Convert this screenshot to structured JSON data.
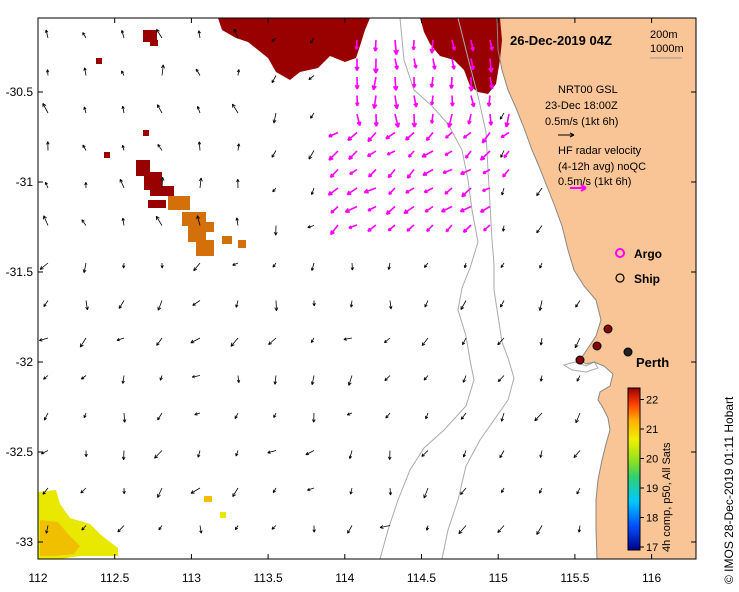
{
  "header": {
    "date": "26-Dec-2019 04Z"
  },
  "bathy_legend": {
    "contour1": "200m",
    "contour2": "1000m"
  },
  "ocean_model": {
    "line1": "NRT00 GSL",
    "line2": "23-Dec 18:00Z",
    "line3": "0.5m/s (1kt 6h)"
  },
  "hf_radar": {
    "line1": "HF radar velocity",
    "line2": "(4-12h avg) noQC",
    "line3": "0.5m/s (1kt 6h)"
  },
  "markers": {
    "argo": "Argo",
    "ship": "Ship",
    "city": "Perth"
  },
  "x_axis": {
    "ticks": [
      "112",
      "112.5",
      "113",
      "113.5",
      "114",
      "114.5",
      "115",
      "115.5",
      "116"
    ]
  },
  "y_axis": {
    "ticks": [
      "-30.5",
      "-31",
      "-31.5",
      "-32",
      "-32.5",
      "-33"
    ]
  },
  "colorbar": {
    "ticks": [
      "17",
      "18",
      "19",
      "20",
      "21",
      "22"
    ],
    "label": "4h comp, p50, All Sats"
  },
  "credit": "© IMOS 28-Dec-2019 01:11 Hobart",
  "colors": {
    "land": "#f9c596",
    "hf_arrows": "#ff00ff",
    "coast": "#999999",
    "warm_sst": "#990000"
  }
}
